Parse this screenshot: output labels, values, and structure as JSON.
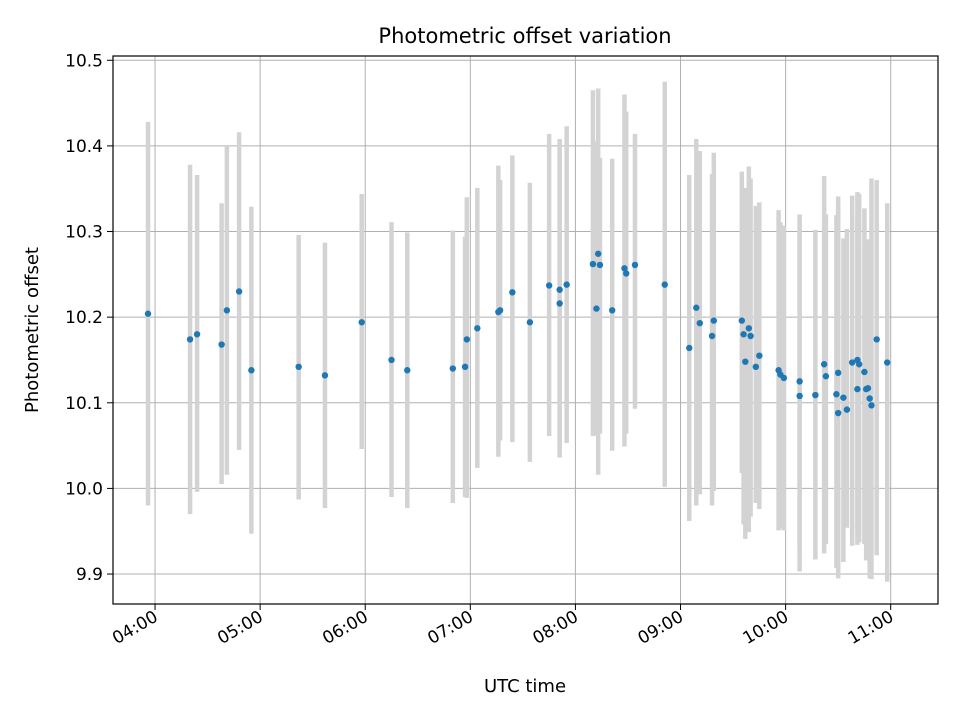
{
  "chart_data": {
    "type": "scatter",
    "title": "Photometric offset variation",
    "xlabel": "UTC time",
    "ylabel": "Photometric offset",
    "xlim": [
      "03:36",
      "11:27"
    ],
    "ylim": [
      9.865,
      10.505
    ],
    "x_ticks": [
      "04:00",
      "05:00",
      "06:00",
      "07:00",
      "08:00",
      "09:00",
      "10:00",
      "11:00"
    ],
    "y_ticks": [
      9.9,
      10.0,
      10.1,
      10.2,
      10.3,
      10.4,
      10.5
    ],
    "y_tick_labels": [
      "9.9",
      "10.0",
      "10.1",
      "10.2",
      "10.3",
      "10.4",
      "10.5"
    ],
    "grid": true,
    "error_bar_color": "#d3d3d3",
    "point_color": "#1f77b4",
    "series": [
      {
        "x": [
          "03:56",
          "04:20",
          "04:24",
          "04:38",
          "04:41",
          "04:48",
          "04:55",
          "05:22",
          "05:37",
          "05:58",
          "06:15",
          "06:24",
          "06:50",
          "06:57",
          "06:58",
          "07:04",
          "07:16",
          "07:17",
          "07:24",
          "07:34",
          "07:45",
          "07:51",
          "07:51",
          "07:55",
          "08:10",
          "08:12",
          "08:13",
          "08:14",
          "08:21",
          "08:28",
          "08:29",
          "08:34",
          "08:51",
          "09:05",
          "09:09",
          "09:11",
          "09:18",
          "09:19",
          "09:35",
          "09:36",
          "09:37",
          "09:39",
          "09:40",
          "09:43",
          "09:45",
          "09:56",
          "09:57",
          "09:59",
          "10:08",
          "10:08",
          "10:17",
          "10:22",
          "10:23",
          "10:29",
          "10:30",
          "10:30",
          "10:33",
          "10:35",
          "10:38",
          "10:41",
          "10:41",
          "10:42",
          "10:45",
          "10:46",
          "10:47",
          "10:48",
          "10:49",
          "10:52",
          "10:58"
        ],
        "y": [
          10.204,
          10.174,
          10.18,
          10.168,
          10.208,
          10.23,
          10.138,
          10.142,
          10.132,
          10.194,
          10.15,
          10.138,
          10.14,
          10.142,
          10.174,
          10.187,
          10.206,
          10.208,
          10.229,
          10.194,
          10.237,
          10.232,
          10.216,
          10.238,
          10.262,
          10.21,
          10.274,
          10.261,
          10.208,
          10.257,
          10.251,
          10.261,
          10.238,
          10.164,
          10.211,
          10.193,
          10.178,
          10.196,
          10.196,
          10.18,
          10.148,
          10.187,
          10.178,
          10.142,
          10.155,
          10.138,
          10.133,
          10.129,
          10.108,
          10.125,
          10.109,
          10.145,
          10.131,
          10.11,
          10.088,
          10.135,
          10.106,
          10.092,
          10.147,
          10.116,
          10.15,
          10.145,
          10.136,
          10.116,
          10.117,
          10.105,
          10.097,
          10.174,
          10.147
        ],
        "err_low": [
          9.98,
          9.97,
          9.996,
          10.005,
          10.016,
          10.045,
          9.947,
          9.987,
          9.977,
          10.046,
          9.99,
          9.977,
          9.983,
          9.99,
          9.989,
          10.024,
          10.037,
          10.056,
          10.054,
          10.031,
          10.061,
          10.04,
          10.036,
          10.053,
          10.061,
          10.062,
          10.016,
          10.064,
          10.044,
          10.049,
          10.064,
          10.093,
          10.002,
          9.962,
          9.98,
          9.993,
          9.98,
          9.997,
          10.018,
          9.958,
          9.941,
          9.949,
          9.967,
          9.983,
          9.976,
          9.951,
          9.953,
          9.951,
          9.903,
          9.93,
          9.917,
          9.924,
          9.935,
          9.907,
          9.895,
          9.903,
          9.914,
          9.954,
          9.933,
          9.952,
          9.934,
          9.937,
          9.935,
          9.916,
          9.921,
          9.895,
          9.894,
          9.922,
          9.891
        ],
        "err_high": [
          10.428,
          10.378,
          10.366,
          10.333,
          10.401,
          10.416,
          10.329,
          10.296,
          10.287,
          10.344,
          10.311,
          10.299,
          10.301,
          10.294,
          10.34,
          10.351,
          10.377,
          10.36,
          10.389,
          10.357,
          10.414,
          10.406,
          10.408,
          10.423,
          10.465,
          10.405,
          10.467,
          10.386,
          10.385,
          10.46,
          10.44,
          10.414,
          10.475,
          10.366,
          10.408,
          10.394,
          10.367,
          10.392,
          10.37,
          10.344,
          10.351,
          10.376,
          10.362,
          10.33,
          10.334,
          10.325,
          10.311,
          10.307,
          10.313,
          10.32,
          10.302,
          10.365,
          10.32,
          10.319,
          10.341,
          10.331,
          10.292,
          10.303,
          10.342,
          10.313,
          10.346,
          10.344,
          10.327,
          10.283,
          10.291,
          10.289,
          10.362,
          10.36,
          10.333
        ]
      }
    ]
  }
}
